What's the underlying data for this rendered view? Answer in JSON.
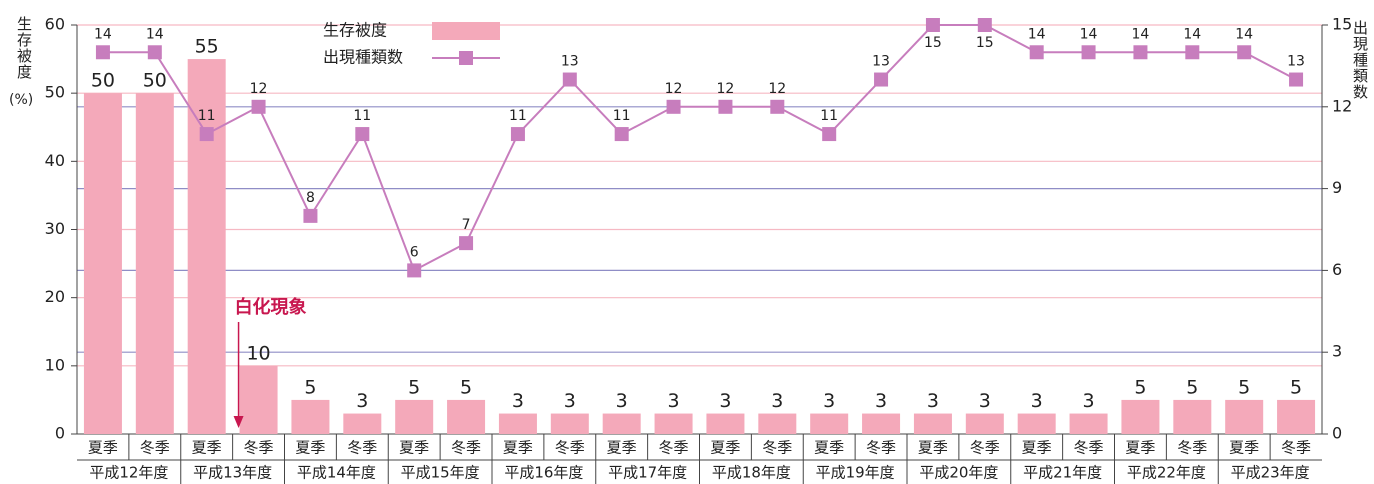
{
  "chart_data": {
    "type": "bar_line",
    "y_label": "生存被度",
    "y_unit": "(%)",
    "y2_label": "出現種類数",
    "annotation": "白化現象",
    "annotation_index": 3,
    "categories": [
      "夏季",
      "冬季",
      "夏季",
      "冬季",
      "夏季",
      "冬季",
      "夏季",
      "冬季",
      "夏季",
      "冬季",
      "夏季",
      "冬季",
      "夏季",
      "冬季",
      "夏季",
      "冬季",
      "夏季",
      "冬季",
      "夏季",
      "冬季",
      "夏季",
      "冬季",
      "夏季",
      "冬季"
    ],
    "groups": [
      "平成12年度",
      "平成13年度",
      "平成14年度",
      "平成15年度",
      "平成16年度",
      "平成17年度",
      "平成18年度",
      "平成19年度",
      "平成20年度",
      "平成21年度",
      "平成22年度",
      "平成23年度"
    ],
    "ylim": [
      0,
      60
    ],
    "yticks": [
      0,
      10,
      20,
      30,
      40,
      50,
      60
    ],
    "y2lim": [
      0,
      15
    ],
    "y2ticks": [
      0,
      3,
      6,
      9,
      12,
      15
    ],
    "series": [
      {
        "name": "生存被度",
        "color": "#f4a9ba",
        "values": [
          50,
          50,
          55,
          10,
          5,
          3,
          5,
          5,
          3,
          3,
          3,
          3,
          3,
          3,
          3,
          3,
          3,
          3,
          3,
          3,
          5,
          5,
          5,
          5
        ]
      },
      {
        "name": "出現種類数",
        "color": "#c77dbd",
        "axis": "y2",
        "values": [
          14,
          14,
          11,
          12,
          8,
          11,
          6,
          7,
          11,
          13,
          11,
          12,
          12,
          12,
          11,
          13,
          15,
          15,
          14,
          14,
          14,
          14,
          14,
          13
        ]
      }
    ]
  }
}
